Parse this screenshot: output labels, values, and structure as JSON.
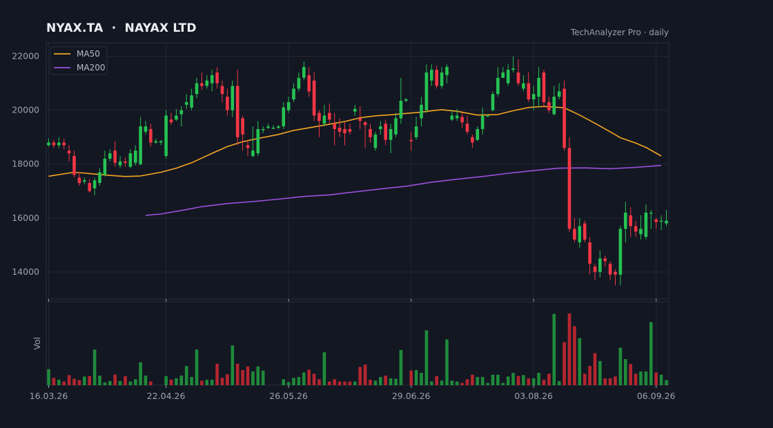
{
  "header": {
    "title": "NYAX.TA  ·  NAYAX LTD",
    "subtitle": "TechAnalyzer Pro · daily"
  },
  "colors": {
    "background": "#131722",
    "up": "#26c252",
    "down": "#f23645",
    "ma50": "#f5a623",
    "ma200": "#9b51e0"
  },
  "chart_data": {
    "type": "candlestick",
    "ylim": [
      13000,
      22500
    ],
    "yticks": [
      14000,
      16000,
      18000,
      20000,
      22000
    ],
    "xticks": [
      {
        "label": "16.03.26",
        "index": 0
      },
      {
        "label": "22.04.26",
        "index": 23
      },
      {
        "label": "26.05.26",
        "index": 47
      },
      {
        "label": "29.06.26",
        "index": 71
      },
      {
        "label": "03.08.26",
        "index": 95
      },
      {
        "label": "06.09.26",
        "index": 119
      }
    ],
    "volume_label": "Vol",
    "legend": [
      {
        "name": "MA50",
        "color": "#f5a623"
      },
      {
        "name": "MA200",
        "color": "#9b51e0"
      }
    ],
    "legend_position": "top-left",
    "grid": true,
    "candles": [
      [
        18700,
        18800,
        18950,
        18650,
        0.35
      ],
      [
        18800,
        18700,
        18900,
        18600,
        0.16
      ],
      [
        18700,
        18800,
        19000,
        18600,
        0.12
      ],
      [
        18800,
        18700,
        18950,
        18550,
        0.08
      ],
      [
        18500,
        18400,
        18700,
        18100,
        0.22
      ],
      [
        18300,
        17600,
        18500,
        17500,
        0.14
      ],
      [
        17500,
        17300,
        17700,
        17200,
        0.11
      ],
      [
        17350,
        17400,
        17500,
        17250,
        0.19
      ],
      [
        17300,
        17000,
        17450,
        16950,
        0.2
      ],
      [
        17100,
        17400,
        17500,
        16850,
        0.78
      ],
      [
        17300,
        17700,
        17850,
        17200,
        0.21
      ],
      [
        17600,
        18200,
        18500,
        17550,
        0.06
      ],
      [
        18200,
        18400,
        18550,
        18100,
        0.09
      ],
      [
        18500,
        18050,
        18850,
        17900,
        0.23
      ],
      [
        17950,
        18100,
        18300,
        17850,
        0.09
      ],
      [
        18100,
        18050,
        18250,
        17900,
        0.2
      ],
      [
        17900,
        18400,
        18550,
        17850,
        0.08
      ],
      [
        18050,
        18500,
        18700,
        17950,
        0.13
      ],
      [
        18000,
        19400,
        19750,
        17950,
        0.5
      ],
      [
        19200,
        19400,
        19600,
        19100,
        0.21
      ],
      [
        19300,
        18800,
        19500,
        18650,
        0.08
      ],
      [
        18800,
        18850,
        18950,
        18750,
        0
      ],
      [
        18800,
        18850,
        18900,
        18700,
        0
      ],
      [
        18300,
        19800,
        20000,
        18200,
        0.2
      ],
      [
        19650,
        19550,
        19900,
        19450,
        0.12
      ],
      [
        19650,
        19800,
        20050,
        19600,
        0.15
      ],
      [
        19850,
        20000,
        20150,
        19400,
        0.21
      ],
      [
        20200,
        20300,
        20600,
        20050,
        0.42
      ],
      [
        20100,
        20550,
        20800,
        20000,
        0.18
      ],
      [
        20600,
        21000,
        21200,
        20450,
        0.78
      ],
      [
        21000,
        20900,
        21400,
        20750,
        0.1
      ],
      [
        20900,
        21100,
        21300,
        20800,
        0.12
      ],
      [
        21000,
        21300,
        21500,
        20700,
        0.12
      ],
      [
        21400,
        21000,
        21600,
        20800,
        0.47
      ],
      [
        20900,
        20600,
        21100,
        20300,
        0.16
      ],
      [
        20500,
        20000,
        20800,
        19800,
        0.24
      ],
      [
        20000,
        20900,
        21100,
        19750,
        0.87
      ],
      [
        20900,
        19000,
        21500,
        18700,
        0.47
      ],
      [
        19700,
        19100,
        19800,
        18500,
        0.33
      ],
      [
        18700,
        18600,
        18900,
        18300,
        0.41
      ],
      [
        18300,
        18500,
        19400,
        18250,
        0.3
      ],
      [
        18400,
        19300,
        19600,
        18300,
        0.41
      ],
      [
        19300,
        19300,
        19400,
        19150,
        0.32
      ],
      [
        19350,
        19400,
        19500,
        19300,
        0
      ],
      [
        19350,
        19350,
        19450,
        19300,
        0
      ],
      [
        19350,
        19400,
        19450,
        19300,
        0
      ],
      [
        19400,
        20100,
        20300,
        19300,
        0.13
      ],
      [
        20000,
        20300,
        20500,
        19900,
        0.07
      ],
      [
        20400,
        20800,
        21000,
        20300,
        0.16
      ],
      [
        20800,
        21200,
        21400,
        20700,
        0.18
      ],
      [
        21200,
        21600,
        21800,
        21100,
        0.28
      ],
      [
        21300,
        20700,
        21600,
        20500,
        0.34
      ],
      [
        21100,
        19800,
        21400,
        19600,
        0.25
      ],
      [
        19900,
        19600,
        20000,
        19000,
        0.13
      ],
      [
        19500,
        19800,
        20200,
        19400,
        0.72
      ],
      [
        19900,
        19650,
        20250,
        19500,
        0.08
      ],
      [
        19500,
        19300,
        19900,
        18700,
        0.13
      ],
      [
        19350,
        19200,
        19700,
        19000,
        0.08
      ],
      [
        19300,
        19150,
        19550,
        18700,
        0.08
      ],
      [
        19300,
        19200,
        19500,
        19100,
        0.08
      ],
      [
        19950,
        20050,
        20200,
        19800,
        0.08
      ],
      [
        19700,
        19600,
        20150,
        19300,
        0.4
      ],
      [
        19550,
        19450,
        19600,
        18600,
        0.45
      ],
      [
        19300,
        19000,
        19500,
        18800,
        0.12
      ],
      [
        18600,
        19100,
        19200,
        18500,
        0.1
      ],
      [
        19300,
        19400,
        19600,
        19100,
        0.18
      ],
      [
        19500,
        18900,
        19650,
        18700,
        0.21
      ],
      [
        18900,
        19300,
        19500,
        18400,
        0.15
      ],
      [
        19100,
        19700,
        19900,
        19000,
        0.14
      ],
      [
        19700,
        20350,
        21200,
        19500,
        0.77
      ],
      [
        20350,
        20400,
        20450,
        20300,
        0
      ],
      [
        18900,
        18850,
        19200,
        18500,
        0.32
      ],
      [
        19000,
        19400,
        19750,
        18900,
        0.33
      ],
      [
        19700,
        20200,
        20500,
        19400,
        0.27
      ],
      [
        20000,
        21400,
        21700,
        19900,
        1.2
      ],
      [
        21100,
        21500,
        21700,
        20900,
        0.08
      ],
      [
        21500,
        20900,
        21650,
        20800,
        0.2
      ],
      [
        20900,
        21400,
        21600,
        20800,
        0.1
      ],
      [
        21300,
        21600,
        21700,
        21000,
        1.0
      ],
      [
        19650,
        19800,
        20000,
        19600,
        0.1
      ],
      [
        19700,
        19800,
        20050,
        19600,
        0.08
      ],
      [
        19750,
        19550,
        19900,
        19350,
        0.05
      ],
      [
        19500,
        19200,
        19800,
        19100,
        0.13
      ],
      [
        19000,
        18800,
        19100,
        18600,
        0.23
      ],
      [
        18900,
        19300,
        19400,
        18850,
        0.18
      ],
      [
        19300,
        19800,
        20100,
        19100,
        0.18
      ],
      [
        19800,
        19800,
        19850,
        19750,
        0.05
      ],
      [
        20000,
        20600,
        20700,
        19950,
        0.23
      ],
      [
        20600,
        21200,
        21600,
        20500,
        0.23
      ],
      [
        21200,
        21400,
        21600,
        21200,
        0.05
      ],
      [
        21000,
        21500,
        21700,
        20900,
        0.19
      ],
      [
        21500,
        21550,
        22000,
        21400,
        0.27
      ],
      [
        21400,
        21000,
        21900,
        20900,
        0.2
      ],
      [
        20800,
        21000,
        21300,
        20700,
        0.22
      ],
      [
        21000,
        20400,
        21400,
        20300,
        0.15
      ],
      [
        20400,
        20600,
        20900,
        20000,
        0.15
      ],
      [
        20500,
        21200,
        21600,
        20100,
        0.27
      ],
      [
        21400,
        20300,
        21500,
        20100,
        0.12
      ],
      [
        20300,
        20000,
        20500,
        19900,
        0.25
      ],
      [
        19850,
        20500,
        20900,
        19800,
        1.56
      ],
      [
        20500,
        20700,
        21000,
        20400,
        0.09
      ],
      [
        20800,
        18600,
        21100,
        18500,
        0.94
      ],
      [
        18600,
        15600,
        19000,
        15500,
        1.57
      ],
      [
        15600,
        15200,
        16000,
        15100,
        1.29
      ],
      [
        15100,
        15700,
        16000,
        14900,
        1.03
      ],
      [
        15800,
        15200,
        15900,
        15100,
        0.25
      ],
      [
        15100,
        14300,
        15300,
        13900,
        0.42
      ],
      [
        14200,
        14000,
        14300,
        13700,
        0.7
      ],
      [
        14000,
        14500,
        14800,
        13800,
        0.53
      ],
      [
        14500,
        14400,
        14600,
        14200,
        0.15
      ],
      [
        14300,
        13900,
        14400,
        13700,
        0.15
      ],
      [
        14000,
        13900,
        14100,
        13500,
        0.19
      ],
      [
        13900,
        15600,
        15700,
        13500,
        0.82
      ],
      [
        15600,
        16200,
        16600,
        15100,
        0.57
      ],
      [
        16100,
        15700,
        16400,
        15300,
        0.46
      ],
      [
        15700,
        15500,
        15900,
        15300,
        0.25
      ],
      [
        15400,
        15600,
        16100,
        15200,
        0.3
      ],
      [
        15300,
        16200,
        16500,
        15200,
        0.3
      ],
      [
        16200,
        16200,
        16300,
        15600,
        1.38
      ],
      [
        15950,
        15850,
        16000,
        15600,
        0.28
      ],
      [
        15900,
        15900,
        16100,
        15550,
        0.23
      ],
      [
        15800,
        15900,
        16300,
        15700,
        0.11
      ]
    ],
    "ma50": [
      [
        0,
        17550
      ],
      [
        5,
        17700
      ],
      [
        8,
        17650
      ],
      [
        12,
        17580
      ],
      [
        15,
        17540
      ],
      [
        18,
        17560
      ],
      [
        22,
        17700
      ],
      [
        25,
        17850
      ],
      [
        28,
        18050
      ],
      [
        32,
        18400
      ],
      [
        35,
        18650
      ],
      [
        38,
        18830
      ],
      [
        41,
        18950
      ],
      [
        45,
        19100
      ],
      [
        48,
        19250
      ],
      [
        52,
        19380
      ],
      [
        55,
        19480
      ],
      [
        58,
        19580
      ],
      [
        61,
        19720
      ],
      [
        64,
        19790
      ],
      [
        67,
        19830
      ],
      [
        70,
        19880
      ],
      [
        73,
        19930
      ],
      [
        75,
        19980
      ],
      [
        77,
        20020
      ],
      [
        80,
        19960
      ],
      [
        84,
        19820
      ],
      [
        88,
        19840
      ],
      [
        91,
        19980
      ],
      [
        94,
        20100
      ],
      [
        97,
        20140
      ],
      [
        101,
        20090
      ],
      [
        104,
        19820
      ],
      [
        107,
        19520
      ],
      [
        110,
        19200
      ],
      [
        112,
        18980
      ],
      [
        115,
        18780
      ],
      [
        117,
        18620
      ],
      [
        120,
        18300
      ]
    ],
    "ma200": [
      [
        19,
        16100
      ],
      [
        22,
        16150
      ],
      [
        26,
        16280
      ],
      [
        30,
        16420
      ],
      [
        35,
        16540
      ],
      [
        40,
        16610
      ],
      [
        45,
        16700
      ],
      [
        50,
        16800
      ],
      [
        55,
        16860
      ],
      [
        60,
        16970
      ],
      [
        65,
        17080
      ],
      [
        70,
        17180
      ],
      [
        75,
        17330
      ],
      [
        80,
        17440
      ],
      [
        85,
        17540
      ],
      [
        90,
        17660
      ],
      [
        95,
        17760
      ],
      [
        100,
        17850
      ],
      [
        105,
        17860
      ],
      [
        110,
        17830
      ],
      [
        115,
        17880
      ],
      [
        120,
        17950
      ]
    ]
  }
}
